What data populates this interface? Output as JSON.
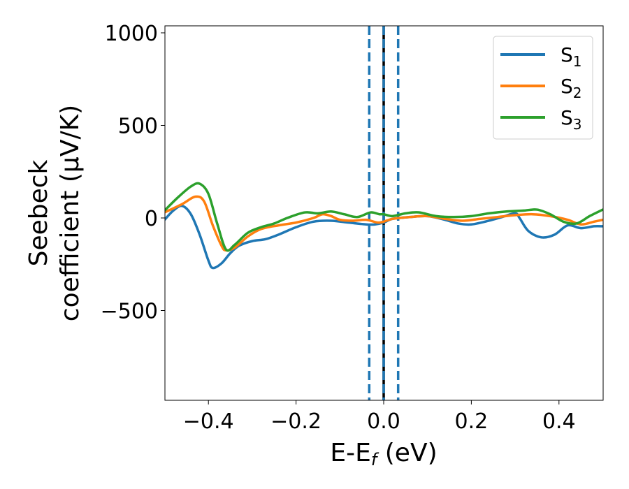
{
  "chart_data": {
    "type": "line",
    "xlabel": "E-E",
    "xlabel_sub": "f",
    "xlabel_unit": " (eV)",
    "ylabel_line1": "Seebeck",
    "ylabel_line2": "coefficient  (μV/K)",
    "xlim": [
      -0.5,
      0.5
    ],
    "ylim": [
      -1000,
      1020
    ],
    "xticks": [
      -0.4,
      -0.2,
      0.0,
      0.2,
      0.4
    ],
    "xtick_labels": [
      "−0.4",
      "−0.2",
      "0.0",
      "0.2",
      "0.4"
    ],
    "yticks": [
      -500,
      0,
      500,
      1000
    ],
    "ytick_labels": [
      "−500",
      "0",
      "500",
      "1000"
    ],
    "grid": false,
    "legend_position": "top-right",
    "vlines": [
      {
        "x": -0.033,
        "style": "dashed",
        "color": "#1f77b4"
      },
      {
        "x": 0.0,
        "style": "solid",
        "color": "#000000"
      },
      {
        "x": 0.0,
        "style": "dashed",
        "color": "#1f77b4"
      },
      {
        "x": 0.033,
        "style": "dashed",
        "color": "#1f77b4"
      }
    ],
    "series": [
      {
        "name": "S",
        "sub": "1",
        "color": "#1f77b4",
        "points": [
          [
            -0.5,
            -10
          ],
          [
            -0.48,
            40
          ],
          [
            -0.46,
            65
          ],
          [
            -0.44,
            20
          ],
          [
            -0.42,
            -90
          ],
          [
            -0.4,
            -230
          ],
          [
            -0.39,
            -270
          ],
          [
            -0.37,
            -245
          ],
          [
            -0.35,
            -190
          ],
          [
            -0.33,
            -150
          ],
          [
            -0.3,
            -125
          ],
          [
            -0.27,
            -115
          ],
          [
            -0.24,
            -90
          ],
          [
            -0.2,
            -50
          ],
          [
            -0.16,
            -20
          ],
          [
            -0.12,
            -15
          ],
          [
            -0.08,
            -25
          ],
          [
            -0.04,
            -35
          ],
          [
            -0.02,
            -35
          ],
          [
            0.0,
            -25
          ],
          [
            0.02,
            -5
          ],
          [
            0.06,
            5
          ],
          [
            0.1,
            10
          ],
          [
            0.14,
            -10
          ],
          [
            0.17,
            -30
          ],
          [
            0.2,
            -35
          ],
          [
            0.24,
            -15
          ],
          [
            0.27,
            5
          ],
          [
            0.3,
            25
          ],
          [
            0.31,
            0
          ],
          [
            0.33,
            -70
          ],
          [
            0.36,
            -105
          ],
          [
            0.39,
            -90
          ],
          [
            0.42,
            -40
          ],
          [
            0.45,
            -55
          ],
          [
            0.48,
            -45
          ],
          [
            0.5,
            -45
          ]
        ]
      },
      {
        "name": "S",
        "sub": "2",
        "color": "#ff7f0e",
        "points": [
          [
            -0.5,
            30
          ],
          [
            -0.46,
            75
          ],
          [
            -0.43,
            115
          ],
          [
            -0.41,
            90
          ],
          [
            -0.39,
            -40
          ],
          [
            -0.37,
            -150
          ],
          [
            -0.36,
            -175
          ],
          [
            -0.34,
            -160
          ],
          [
            -0.31,
            -100
          ],
          [
            -0.28,
            -60
          ],
          [
            -0.24,
            -40
          ],
          [
            -0.2,
            -25
          ],
          [
            -0.16,
            0
          ],
          [
            -0.14,
            20
          ],
          [
            -0.12,
            10
          ],
          [
            -0.1,
            -10
          ],
          [
            -0.07,
            -15
          ],
          [
            -0.04,
            -10
          ],
          [
            -0.01,
            -25
          ],
          [
            0.02,
            -5
          ],
          [
            0.06,
            5
          ],
          [
            0.1,
            10
          ],
          [
            0.14,
            -5
          ],
          [
            0.18,
            -15
          ],
          [
            0.22,
            -5
          ],
          [
            0.26,
            5
          ],
          [
            0.3,
            15
          ],
          [
            0.34,
            20
          ],
          [
            0.38,
            10
          ],
          [
            0.42,
            -10
          ],
          [
            0.45,
            -35
          ],
          [
            0.48,
            -20
          ],
          [
            0.5,
            -10
          ]
        ]
      },
      {
        "name": "S",
        "sub": "3",
        "color": "#2ca02c",
        "points": [
          [
            -0.5,
            40
          ],
          [
            -0.47,
            110
          ],
          [
            -0.44,
            170
          ],
          [
            -0.42,
            185
          ],
          [
            -0.4,
            130
          ],
          [
            -0.38,
            -30
          ],
          [
            -0.36,
            -170
          ],
          [
            -0.34,
            -145
          ],
          [
            -0.31,
            -80
          ],
          [
            -0.28,
            -50
          ],
          [
            -0.25,
            -30
          ],
          [
            -0.22,
            0
          ],
          [
            -0.18,
            30
          ],
          [
            -0.15,
            25
          ],
          [
            -0.12,
            35
          ],
          [
            -0.09,
            20
          ],
          [
            -0.06,
            5
          ],
          [
            -0.03,
            30
          ],
          [
            -0.01,
            20
          ],
          [
            0.0,
            20
          ],
          [
            0.02,
            10
          ],
          [
            0.05,
            25
          ],
          [
            0.08,
            30
          ],
          [
            0.12,
            10
          ],
          [
            0.16,
            5
          ],
          [
            0.2,
            10
          ],
          [
            0.24,
            25
          ],
          [
            0.28,
            35
          ],
          [
            0.32,
            40
          ],
          [
            0.35,
            45
          ],
          [
            0.38,
            20
          ],
          [
            0.41,
            -20
          ],
          [
            0.44,
            -30
          ],
          [
            0.47,
            10
          ],
          [
            0.5,
            45
          ]
        ]
      }
    ]
  }
}
